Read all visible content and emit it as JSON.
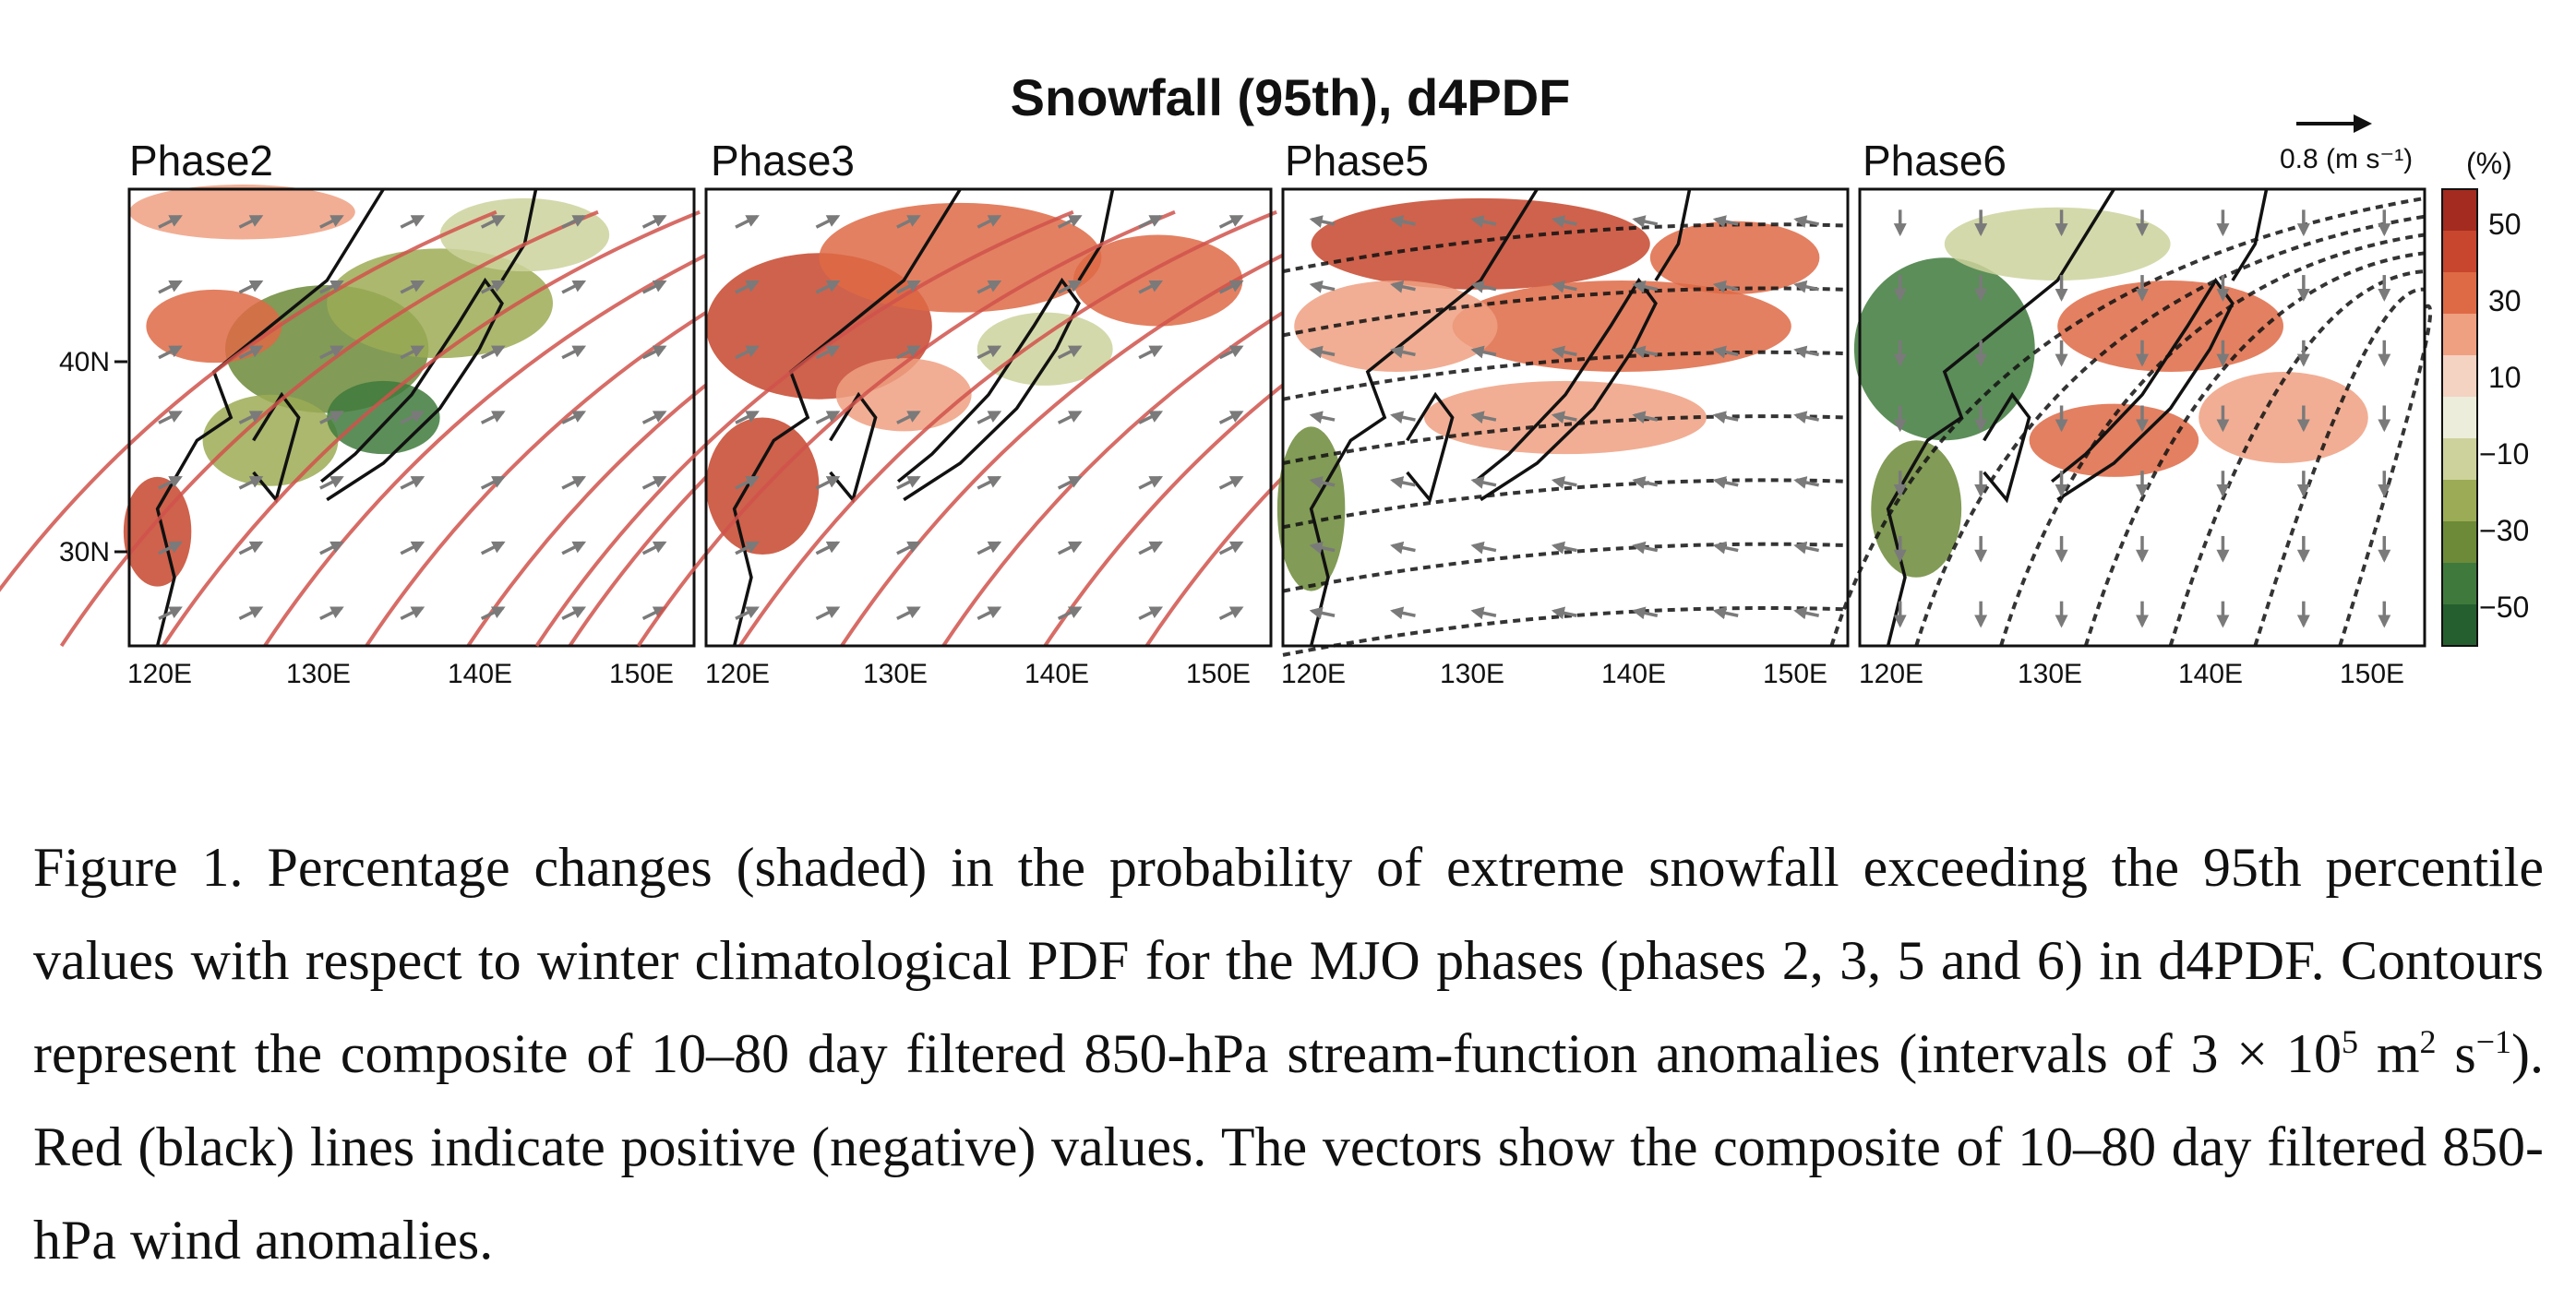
{
  "figure": {
    "title": "Snowfall (95th), d4PDF",
    "panels": [
      {
        "label": "Phase2",
        "flow": "southwest",
        "anom": "mixed"
      },
      {
        "label": "Phase3",
        "flow": "southwest",
        "anom": "wet"
      },
      {
        "label": "Phase5",
        "flow": "west",
        "anom": "wet-north"
      },
      {
        "label": "Phase6",
        "flow": "south",
        "anom": "dry-west"
      }
    ],
    "lat_labels": [
      "40N",
      "30N"
    ],
    "lon_labels": [
      "120E",
      "130E",
      "140E",
      "150E"
    ],
    "reference_vector": "0.8 (m s⁻¹)",
    "colorbar": {
      "unit": "(%)",
      "tick_labels": [
        "50",
        "30",
        "10",
        "−10",
        "−30",
        "−50"
      ],
      "colors": [
        "#a32b1f",
        "#c7462d",
        "#de6a45",
        "#eea081",
        "#f4d3c2",
        "#ededdc",
        "#cdd29c",
        "#9cab55",
        "#6c8a38",
        "#3f7a3c",
        "#255f30"
      ]
    },
    "contour_colors": {
      "positive": "#d0524b",
      "negative": "#111111"
    },
    "vector_color": "#7a7a7a"
  },
  "caption": {
    "p1": "Figure 1. Percentage changes (shaded) in the probability of extreme snowfall exceeding the 95th percentile values with respect to winter climatological PDF for the MJO phases (phases 2, 3, 5 and 6) in d4PDF. Contours represent the composite of 10–80 day filtered 850-hPa stream-function anomalies (intervals of 3 × 10",
    "sup1": "5",
    "p2": " m",
    "sup2": "2",
    "p3": " s",
    "sup3": "−1",
    "p4": "). Red (black) lines indicate positive (negative) values. The vectors show the composite of 10–80 day filtered 850-hPa wind anomalies."
  }
}
